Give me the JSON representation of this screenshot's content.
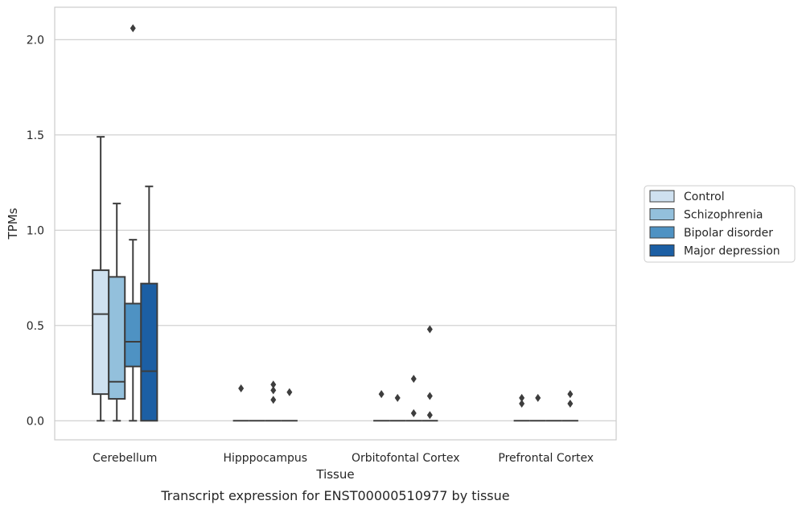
{
  "caption": "Transcript expression for ENST00000510977 by tissue",
  "colors": {
    "Control": "#cfe1f0",
    "Schizophrenia": "#93c0dc",
    "Bipolar disorder": "#4e92c3",
    "Major depression": "#1c5fa4",
    "edge": "#3d3d3d",
    "grid": "#cccccc",
    "frame": "#cccccc"
  },
  "chart_data": {
    "type": "box",
    "title": "",
    "xlabel": "Tissue",
    "ylabel": "TPMs",
    "ylim": [
      -0.1,
      2.17
    ],
    "yticks": [
      0.0,
      0.5,
      1.0,
      1.5,
      2.0
    ],
    "ytick_labels": [
      "0.0",
      "0.5",
      "1.0",
      "1.5",
      "2.0"
    ],
    "grid": true,
    "legend_position": "right",
    "categories": [
      "Cerebellum",
      "Hipppocampus",
      "Orbitofontal Cortex",
      "Prefrontal Cortex"
    ],
    "series": [
      {
        "name": "Control",
        "boxes": [
          {
            "whislo": 0.0,
            "q1": 0.14,
            "med": 0.56,
            "q3": 0.79,
            "whishi": 1.49,
            "fliers": []
          },
          {
            "whislo": 0.0,
            "q1": 0.0,
            "med": 0.0,
            "q3": 0.0,
            "whishi": 0.0,
            "fliers": [
              0.17
            ]
          },
          {
            "whislo": 0.0,
            "q1": 0.0,
            "med": 0.0,
            "q3": 0.0,
            "whishi": 0.0,
            "fliers": [
              0.14
            ]
          },
          {
            "whislo": 0.0,
            "q1": 0.0,
            "med": 0.0,
            "q3": 0.0,
            "whishi": 0.0,
            "fliers": [
              0.12,
              0.09
            ]
          }
        ]
      },
      {
        "name": "Schizophrenia",
        "boxes": [
          {
            "whislo": 0.0,
            "q1": 0.115,
            "med": 0.205,
            "q3": 0.755,
            "whishi": 1.14,
            "fliers": []
          },
          {
            "whislo": 0.0,
            "q1": 0.0,
            "med": 0.0,
            "q3": 0.0,
            "whishi": 0.0,
            "fliers": []
          },
          {
            "whislo": 0.0,
            "q1": 0.0,
            "med": 0.0,
            "q3": 0.0,
            "whishi": 0.0,
            "fliers": [
              0.12
            ]
          },
          {
            "whislo": 0.0,
            "q1": 0.0,
            "med": 0.0,
            "q3": 0.0,
            "whishi": 0.0,
            "fliers": [
              0.12
            ]
          }
        ]
      },
      {
        "name": "Bipolar disorder",
        "boxes": [
          {
            "whislo": 0.0,
            "q1": 0.285,
            "med": 0.415,
            "q3": 0.615,
            "whishi": 0.95,
            "fliers": [
              2.06
            ]
          },
          {
            "whislo": 0.0,
            "q1": 0.0,
            "med": 0.0,
            "q3": 0.0,
            "whishi": 0.0,
            "fliers": [
              0.19,
              0.16,
              0.11
            ]
          },
          {
            "whislo": 0.0,
            "q1": 0.0,
            "med": 0.0,
            "q3": 0.0,
            "whishi": 0.0,
            "fliers": [
              0.22,
              0.04
            ]
          },
          {
            "whislo": 0.0,
            "q1": 0.0,
            "med": 0.0,
            "q3": 0.0,
            "whishi": 0.0,
            "fliers": []
          }
        ]
      },
      {
        "name": "Major depression",
        "boxes": [
          {
            "whislo": 0.0,
            "q1": 0.0,
            "med": 0.26,
            "q3": 0.72,
            "whishi": 1.23,
            "fliers": []
          },
          {
            "whislo": 0.0,
            "q1": 0.0,
            "med": 0.0,
            "q3": 0.0,
            "whishi": 0.0,
            "fliers": [
              0.15
            ]
          },
          {
            "whislo": 0.0,
            "q1": 0.0,
            "med": 0.0,
            "q3": 0.0,
            "whishi": 0.0,
            "fliers": [
              0.48,
              0.13,
              0.03
            ]
          },
          {
            "whislo": 0.0,
            "q1": 0.0,
            "med": 0.0,
            "q3": 0.0,
            "whishi": 0.0,
            "fliers": [
              0.14,
              0.09
            ]
          }
        ]
      }
    ]
  }
}
